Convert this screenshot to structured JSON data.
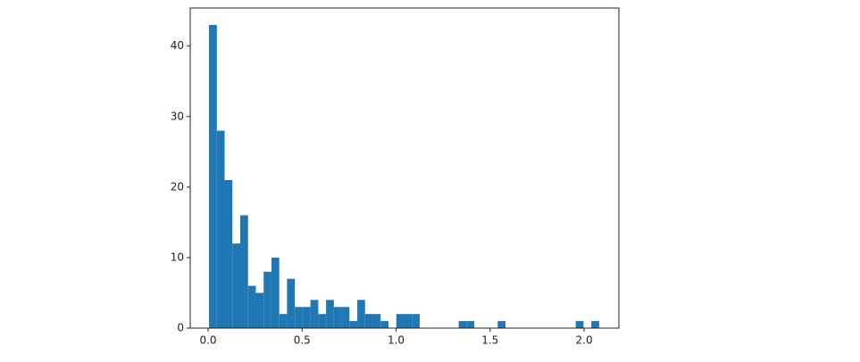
{
  "chart_data": {
    "type": "histogram",
    "bins": [
      0.005,
      0.0465,
      0.088,
      0.1295,
      0.171,
      0.2125,
      0.254,
      0.2955,
      0.337,
      0.3785,
      0.42,
      0.4615,
      0.503,
      0.5445,
      0.586,
      0.6275,
      0.669,
      0.7105,
      0.752,
      0.7935,
      0.835,
      0.8765,
      0.918,
      0.9595,
      1.001,
      1.0425,
      1.084,
      1.1255,
      1.167,
      1.2085,
      1.25,
      1.2915,
      1.333,
      1.3745,
      1.416,
      1.4575,
      1.499,
      1.5405,
      1.582,
      1.6235,
      1.665,
      1.7065,
      1.748,
      1.7895,
      1.831,
      1.8725,
      1.914,
      1.9555,
      1.997,
      2.0385,
      2.08
    ],
    "values": [
      43,
      28,
      21,
      12,
      16,
      6,
      5,
      8,
      10,
      2,
      7,
      3,
      3,
      4,
      2,
      4,
      3,
      3,
      1,
      4,
      2,
      2,
      1,
      0,
      2,
      2,
      2,
      0,
      0,
      0,
      0,
      0,
      1,
      1,
      0,
      0,
      0,
      1,
      0,
      0,
      0,
      0,
      0,
      0,
      0,
      0,
      0,
      1,
      0,
      1
    ],
    "color": "#1f77b4",
    "xlim": [
      -0.095,
      2.185
    ],
    "ylim": [
      0,
      45.4
    ],
    "xticks": [
      {
        "value": 0,
        "label": "0.0"
      },
      {
        "value": 0.5,
        "label": "0.5"
      },
      {
        "value": 1,
        "label": "1.0"
      },
      {
        "value": 1.5,
        "label": "1.5"
      },
      {
        "value": 2,
        "label": "2.0"
      }
    ],
    "yticks": [
      0,
      10,
      20,
      30,
      40
    ]
  }
}
